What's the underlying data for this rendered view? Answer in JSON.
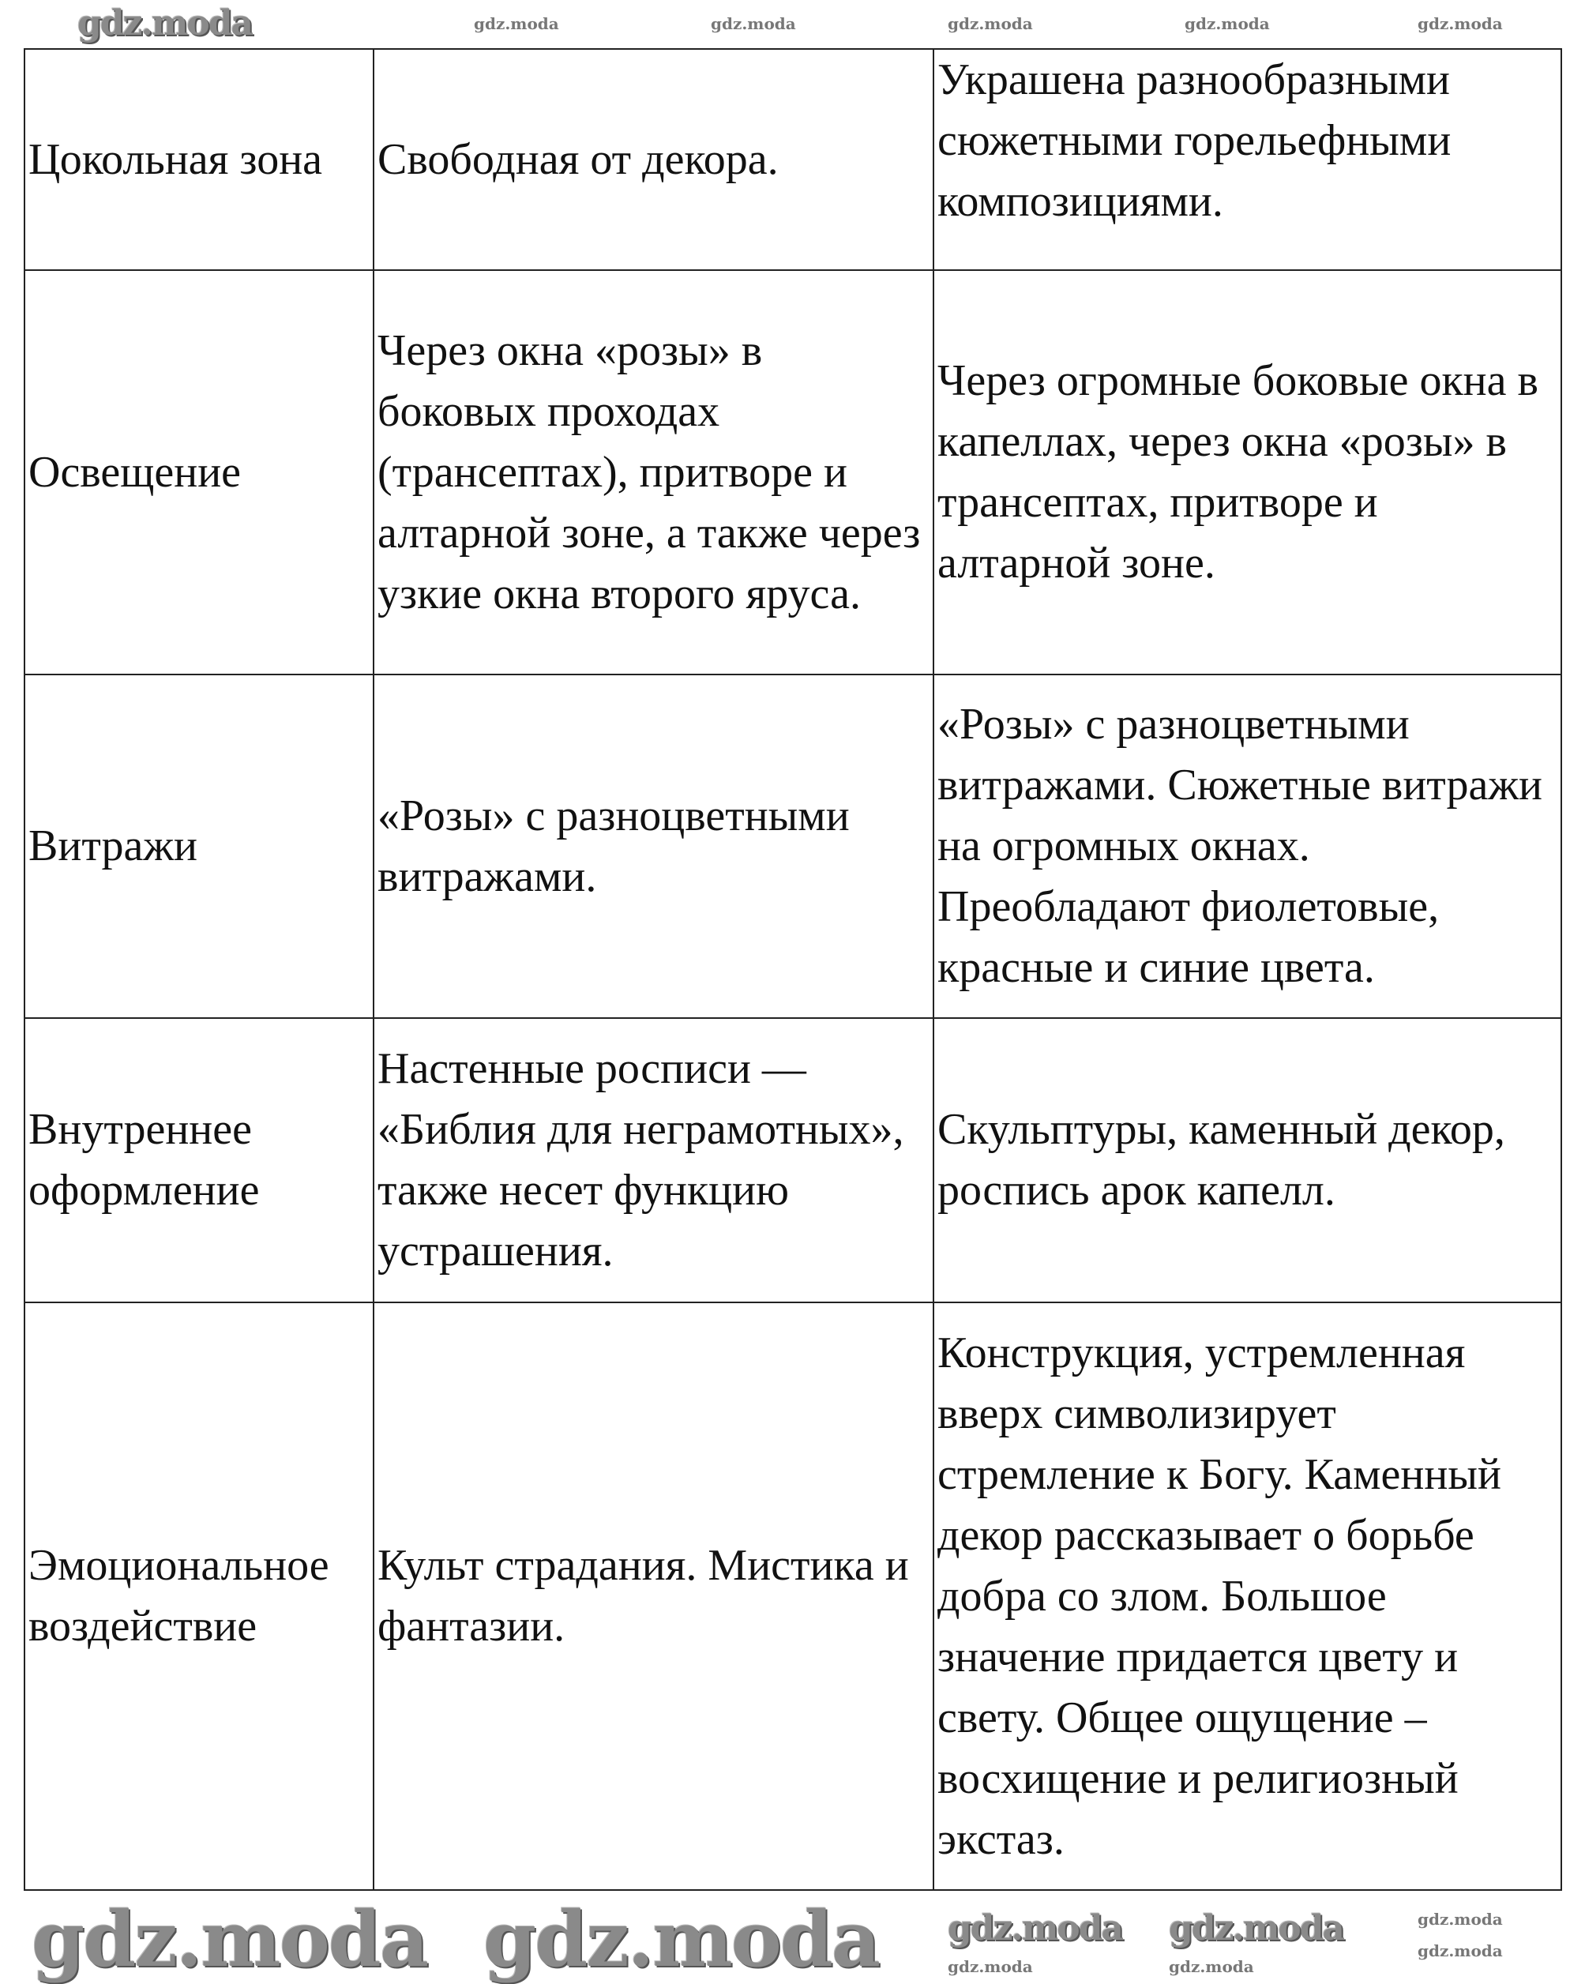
{
  "table": {
    "rows": [
      {
        "feature": "Цокольная зона",
        "romanesque": "Свободная от декора.",
        "gothic": "Украшена разнообразными сюжетными горельефными композициями."
      },
      {
        "feature": "Освещение",
        "romanesque": "Через окна «розы» в боковых проходах (трансептах), притворе и алтарной зоне, а также через узкие окна второго яруса.",
        "gothic": "Через огромные боковые окна в капеллах, через окна «розы» в трансептах, притворе и алтарной зоне."
      },
      {
        "feature": "Витражи",
        "romanesque": "«Розы» с разноцветными витражами.",
        "gothic": "«Розы» с разноцветными витражами. Сюжетные витражи на огромных окнах. Преобладают фиолетовые, красные и синие цвета."
      },
      {
        "feature": "Внутреннее оформление",
        "romanesque": "Настенные росписи — «Библия для неграмотных», также несет функцию устрашения.",
        "gothic": "Скульптуры, каменный декор, роспись арок капелл."
      },
      {
        "feature": "Эмоциональное воздействие",
        "romanesque": "Культ страдания. Мистика и фантазии.",
        "gothic": "Конструкция, устремленная вверх символизирует стремление к Богу. Каменный декор рассказывает о борьбе добра со злом. Большое значение придается цвету и свету. Общее ощущение – восхищение и религиозный экстаз."
      }
    ]
  },
  "watermark": "gdz.moda"
}
